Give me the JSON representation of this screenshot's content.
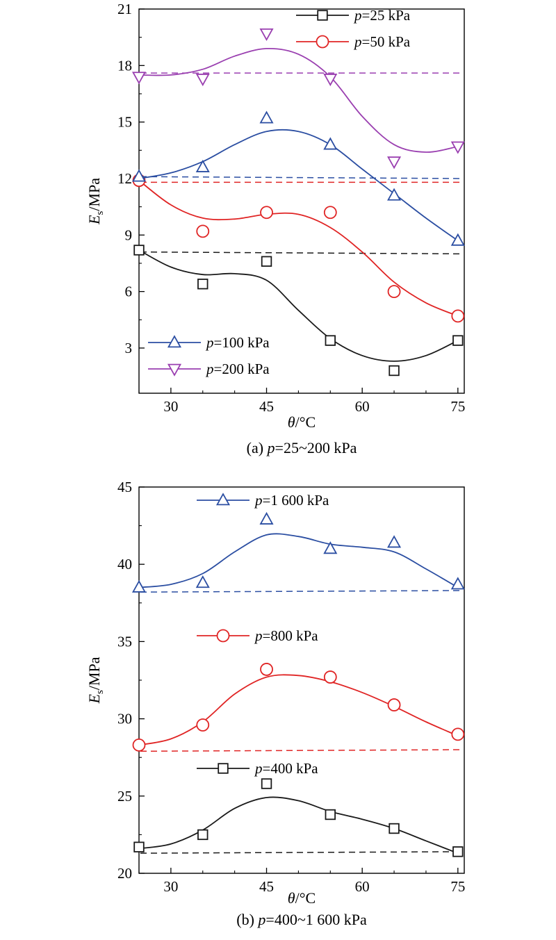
{
  "chart_data": [
    {
      "type": "line",
      "caption_prefix": "(a) ",
      "caption_var": "p",
      "caption_rest": "=25~200 kPa",
      "xlabel_var": "θ",
      "xlabel_unit": "/°C",
      "ylabel_var": "E",
      "ylabel_sub": "s",
      "ylabel_unit": "/MPa",
      "xlim": [
        25,
        76
      ],
      "ylim": [
        0.6,
        21
      ],
      "xticks": [
        "30",
        "45",
        "60",
        "75"
      ],
      "yticks": [
        "3",
        "6",
        "9",
        "12",
        "15",
        "18",
        "21"
      ],
      "x": [
        25,
        35,
        45,
        55,
        65,
        75
      ],
      "series": [
        {
          "name_var": "p",
          "name_rest": "=25 kPa",
          "marker": "square",
          "color": "#1a1a1a",
          "points": [
            8.2,
            6.4,
            7.6,
            3.4,
            1.8,
            3.4
          ],
          "fit_x": [
            25,
            30,
            35,
            40,
            45,
            50,
            55,
            60,
            65,
            70,
            75
          ],
          "fit_y": [
            8.2,
            7.3,
            6.9,
            6.95,
            6.6,
            5.0,
            3.5,
            2.6,
            2.3,
            2.6,
            3.4
          ],
          "reference": [
            8.1,
            8.0
          ]
        },
        {
          "name_var": "p",
          "name_rest": "=50 kPa",
          "marker": "circle",
          "color": "#e02424",
          "points": [
            11.9,
            9.2,
            10.2,
            10.2,
            6.0,
            4.7
          ],
          "fit_x": [
            25,
            30,
            35,
            40,
            45,
            50,
            55,
            60,
            65,
            70,
            75
          ],
          "fit_y": [
            11.9,
            10.6,
            9.9,
            9.85,
            10.1,
            10.1,
            9.4,
            8.1,
            6.5,
            5.4,
            4.7
          ],
          "reference": [
            11.8,
            11.8
          ]
        },
        {
          "name_var": "p",
          "name_rest": "=100 kPa",
          "marker": "triangle-up",
          "color": "#2b4ea2",
          "points": [
            12.1,
            12.6,
            15.2,
            13.8,
            11.1,
            8.7
          ],
          "fit_x": [
            25,
            30,
            35,
            40,
            45,
            50,
            55,
            60,
            65,
            70,
            75
          ],
          "fit_y": [
            12.0,
            12.3,
            12.9,
            13.8,
            14.5,
            14.5,
            13.8,
            12.5,
            11.2,
            9.9,
            8.7
          ],
          "reference": [
            12.1,
            12.0
          ]
        },
        {
          "name_var": "p",
          "name_rest": "=200 kPa",
          "marker": "triangle-down",
          "color": "#9a3fb0",
          "points": [
            17.4,
            17.3,
            19.7,
            17.3,
            12.9,
            13.7
          ],
          "fit_x": [
            25,
            30,
            35,
            40,
            45,
            50,
            55,
            60,
            65,
            70,
            75
          ],
          "fit_y": [
            17.5,
            17.5,
            17.8,
            18.5,
            18.9,
            18.6,
            17.4,
            15.3,
            13.8,
            13.4,
            13.7
          ],
          "reference": [
            17.6,
            17.6
          ]
        }
      ]
    },
    {
      "type": "line",
      "caption_prefix": "(b) ",
      "caption_var": "p",
      "caption_rest": "=400~1 600 kPa",
      "xlabel_var": "θ",
      "xlabel_unit": "/°C",
      "ylabel_var": "E",
      "ylabel_sub": "s",
      "ylabel_unit": "/MPa",
      "xlim": [
        25,
        76
      ],
      "ylim": [
        20,
        45
      ],
      "xticks": [
        "30",
        "45",
        "60",
        "75"
      ],
      "yticks": [
        "20",
        "25",
        "30",
        "35",
        "40",
        "45"
      ],
      "x": [
        25,
        35,
        45,
        55,
        65,
        75
      ],
      "series": [
        {
          "name_var": "p",
          "name_rest": "=1 600 kPa",
          "marker": "triangle-up",
          "color": "#2b4ea2",
          "points": [
            38.5,
            38.8,
            42.9,
            41.0,
            41.4,
            38.7
          ],
          "fit_x": [
            25,
            30,
            35,
            40,
            45,
            50,
            55,
            60,
            65,
            70,
            75
          ],
          "fit_y": [
            38.5,
            38.7,
            39.4,
            40.8,
            41.9,
            41.8,
            41.3,
            41.1,
            40.8,
            39.7,
            38.5
          ],
          "reference": [
            38.2,
            38.3
          ]
        },
        {
          "name_var": "p",
          "name_rest": "=800 kPa",
          "marker": "circle",
          "color": "#e02424",
          "points": [
            28.3,
            29.6,
            33.2,
            32.7,
            30.9,
            29.0
          ],
          "fit_x": [
            25,
            30,
            35,
            40,
            45,
            50,
            55,
            60,
            65,
            70,
            75
          ],
          "fit_y": [
            28.3,
            28.7,
            29.8,
            31.6,
            32.7,
            32.8,
            32.4,
            31.7,
            30.8,
            29.8,
            28.9
          ],
          "reference": [
            27.9,
            28.0
          ]
        },
        {
          "name_var": "p",
          "name_rest": "=400 kPa",
          "marker": "square",
          "color": "#1a1a1a",
          "points": [
            21.7,
            22.5,
            25.8,
            23.8,
            22.9,
            21.4
          ],
          "fit_x": [
            25,
            30,
            35,
            40,
            45,
            50,
            55,
            60,
            65,
            70,
            75
          ],
          "fit_y": [
            21.6,
            21.9,
            22.8,
            24.2,
            24.9,
            24.7,
            24.0,
            23.5,
            22.9,
            22.1,
            21.3
          ],
          "reference": [
            21.3,
            21.4
          ]
        }
      ]
    }
  ]
}
